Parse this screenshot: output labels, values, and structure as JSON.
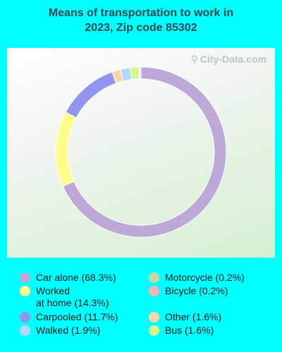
{
  "chart_data": {
    "type": "pie",
    "title": "Means of transportation to work in\n2023, Zip code 85302",
    "watermark": "City-Data.com",
    "slices": [
      {
        "label": "Car alone (68.3%)",
        "value": 68.3,
        "color": "#bda8d8"
      },
      {
        "label": "Worked\nat home (14.3%)",
        "value": 14.3,
        "color": "#fdfd8c"
      },
      {
        "label": "Carpooled (11.7%)",
        "value": 11.7,
        "color": "#9393f0"
      },
      {
        "label": "Other (1.6%)",
        "value": 1.6,
        "color": "#fcd4a8"
      },
      {
        "label": "Walked (1.9%)",
        "value": 1.9,
        "color": "#b4d8f8"
      },
      {
        "label": "Bus (1.6%)",
        "value": 1.6,
        "color": "#d4f78a"
      },
      {
        "label": "Motorcycle (0.2%)",
        "value": 0.2,
        "color": "#c4d8a8"
      },
      {
        "label": "Bicycle (0.2%)",
        "value": 0.2,
        "color": "#f4b4b4"
      }
    ],
    "legend_left": [
      "Car alone (68.3%)",
      "Worked\nat home (14.3%)",
      "Carpooled (11.7%)",
      "Walked (1.9%)"
    ],
    "legend_right": [
      "Motorcycle (0.2%)",
      "Bicycle (0.2%)",
      "Other (1.6%)",
      "Bus (1.6%)"
    ]
  }
}
